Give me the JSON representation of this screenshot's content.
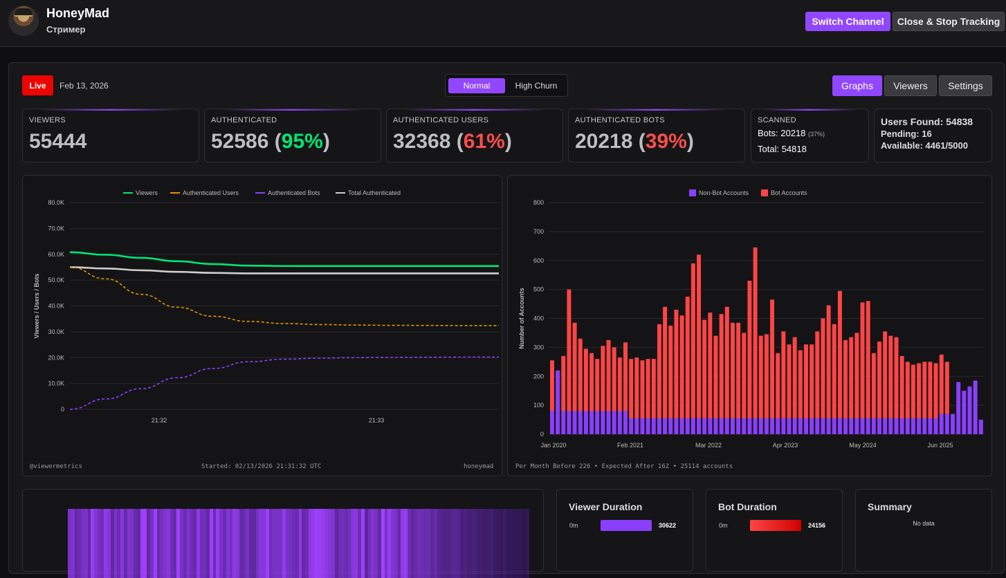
{
  "channel": {
    "name": "HoneyMad",
    "role": "Стример"
  },
  "header": {
    "switch_label": "Switch Channel",
    "stop_label": "Close & Stop Tracking"
  },
  "status": {
    "live_label": "Live",
    "date": "Feb 13, 2026"
  },
  "modes": {
    "normal": "Normal",
    "high_churn": "High Churn"
  },
  "tabs": {
    "graphs": "Graphs",
    "viewers": "Viewers",
    "settings": "Settings"
  },
  "stats": {
    "viewers": {
      "label": "VIEWERS",
      "value": "55444"
    },
    "authenticated": {
      "label": "AUTHENTICATED",
      "value": "52586",
      "pct": "95%"
    },
    "auth_users": {
      "label": "AUTHENTICATED USERS",
      "value": "32368",
      "pct": "61%"
    },
    "auth_bots": {
      "label": "AUTHENTICATED BOTS",
      "value": "20218",
      "pct": "39%"
    },
    "scanned": {
      "label": "SCANNED",
      "bots_label": "Bots:",
      "bots": "20218",
      "bots_pct": "(37%)",
      "total_label": "Total:",
      "total": "54818"
    }
  },
  "found": {
    "users_found": "Users Found: 54838",
    "pending": "Pending: 16",
    "available": "Available: 4461/5000"
  },
  "line_footer": {
    "left": "@viewermetrics",
    "center": "Started: 02/13/2026 21:31:32 UTC",
    "right": "honeymad"
  },
  "bar_footer": {
    "text": "Per Month Before 226 • Expected After 162 • 25114 accounts"
  },
  "lower": {
    "viewer_duration": {
      "title": "Viewer Duration",
      "min": "0m",
      "count": "30622"
    },
    "bot_duration": {
      "title": "Bot Duration",
      "min": "0m",
      "count": "24156"
    },
    "summary": {
      "title": "Summary",
      "empty": "No data"
    }
  },
  "colors": {
    "accent": "#9147ff",
    "live": "#eb0400",
    "green": "#00e676",
    "red": "#ff4d4d"
  },
  "chart_data": [
    {
      "type": "line",
      "title": "",
      "xlabel": "",
      "ylabel": "Viewers / Users / Bots",
      "ylim": [
        0,
        80000
      ],
      "yticks": [
        0,
        10000,
        20000,
        30000,
        40000,
        50000,
        60000,
        70000,
        80000
      ],
      "ytick_labels": [
        "0",
        "10.0K",
        "20.0K",
        "30.0K",
        "40.0K",
        "50.0K",
        "60.0K",
        "70.0K",
        "80.0K"
      ],
      "x_tick_labels": [
        "21:32",
        "21:33"
      ],
      "x": [
        0,
        1,
        2,
        3,
        4,
        5,
        6,
        7,
        8,
        9,
        10,
        11,
        12
      ],
      "series": [
        {
          "name": "Viewers",
          "color": "#00e676",
          "dash": false,
          "values": [
            60800,
            59800,
            58600,
            57300,
            56200,
            55600,
            55450,
            55444,
            55444,
            55444,
            55444,
            55444,
            55444
          ]
        },
        {
          "name": "Authenticated Users",
          "color": "#e69500",
          "dash": true,
          "values": [
            55000,
            50500,
            44500,
            39500,
            36000,
            34000,
            33200,
            32800,
            32600,
            32500,
            32450,
            32400,
            32368
          ]
        },
        {
          "name": "Authenticated Bots",
          "color": "#8a3ffc",
          "dash": true,
          "values": [
            0,
            4000,
            8000,
            12200,
            15800,
            18400,
            19400,
            19800,
            20000,
            20100,
            20150,
            20200,
            20218
          ]
        },
        {
          "name": "Total Authenticated",
          "color": "#cfcfcf",
          "dash": false,
          "values": [
            55000,
            54500,
            53800,
            53200,
            52800,
            52600,
            52586,
            52586,
            52586,
            52586,
            52586,
            52586,
            52586
          ]
        }
      ]
    },
    {
      "type": "bar",
      "stacked": true,
      "title": "",
      "xlabel": "",
      "ylabel": "Number of Accounts",
      "ylim": [
        0,
        800
      ],
      "yticks": [
        0,
        100,
        200,
        300,
        400,
        500,
        600,
        700,
        800
      ],
      "x_tick_labels": [
        "Jan 2020",
        "Feb 2021",
        "Mar 2022",
        "Apr 2023",
        "May 2024",
        "Jun 2025"
      ],
      "series": [
        {
          "name": "Non-Bot Accounts",
          "color": "#8a3ffc",
          "values": [
            80,
            220,
            80,
            80,
            80,
            80,
            80,
            80,
            80,
            80,
            80,
            80,
            80,
            80,
            55,
            55,
            55,
            55,
            55,
            55,
            55,
            55,
            55,
            55,
            55,
            55,
            55,
            55,
            55,
            55,
            55,
            55,
            55,
            55,
            55,
            55,
            55,
            55,
            55,
            55,
            55,
            55,
            55,
            55,
            55,
            55,
            55,
            55,
            55,
            55,
            55,
            55,
            55,
            55,
            55,
            55,
            55,
            55,
            55,
            55,
            55,
            55,
            55,
            55,
            55,
            55,
            55,
            55,
            55,
            70,
            70,
            70,
            180,
            150,
            165,
            185,
            50
          ]
        },
        {
          "name": "Bot Accounts",
          "color": "#ff4545",
          "values": [
            175,
            0,
            190,
            420,
            305,
            250,
            215,
            200,
            180,
            225,
            245,
            220,
            185,
            237,
            205,
            210,
            200,
            205,
            205,
            325,
            385,
            320,
            375,
            355,
            420,
            535,
            565,
            340,
            365,
            285,
            360,
            385,
            330,
            330,
            295,
            475,
            590,
            285,
            290,
            410,
            225,
            300,
            255,
            280,
            235,
            255,
            255,
            300,
            345,
            390,
            325,
            440,
            270,
            280,
            295,
            400,
            405,
            225,
            265,
            300,
            285,
            280,
            215,
            195,
            185,
            190,
            195,
            195,
            190,
            205,
            180,
            0,
            0,
            0,
            0,
            0,
            0
          ]
        }
      ]
    }
  ]
}
